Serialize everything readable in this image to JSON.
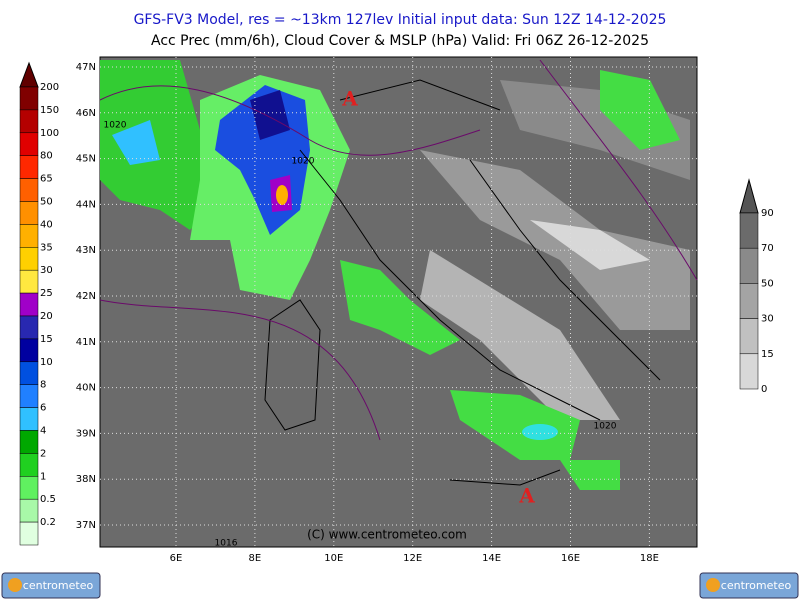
{
  "header": {
    "line1": "GFS-FV3 Model, res = ~13km 127lev   Initial input data: Sun 12Z 14-12-2025",
    "line2": "Acc Prec (mm/6h), Cloud Cover & MSLP (hPa)  Valid: Fri 06Z 26-12-2025"
  },
  "map": {
    "lat_labels": [
      "47N",
      "46N",
      "45N",
      "44N",
      "43N",
      "42N",
      "41N",
      "40N",
      "39N",
      "38N",
      "37N"
    ],
    "lon_labels": [
      "6E",
      "8E",
      "10E",
      "12E",
      "14E",
      "16E",
      "18E"
    ],
    "isobar_labels": [
      "1020",
      "1020",
      "1020",
      "1016"
    ],
    "high_markers": [
      "A",
      "A"
    ],
    "credit": "(C) www.centrometeo.com"
  },
  "precip_scale": {
    "labels": [
      "200",
      "150",
      "100",
      "80",
      "65",
      "50",
      "40",
      "35",
      "30",
      "25",
      "20",
      "15",
      "10",
      "8",
      "6",
      "4",
      "2",
      "1",
      "0.5",
      "0.2"
    ]
  },
  "cloud_scale": {
    "labels": [
      "90",
      "70",
      "50",
      "30",
      "15",
      "0"
    ]
  },
  "logos": [
    "centrometeo",
    "centrometeo"
  ]
}
